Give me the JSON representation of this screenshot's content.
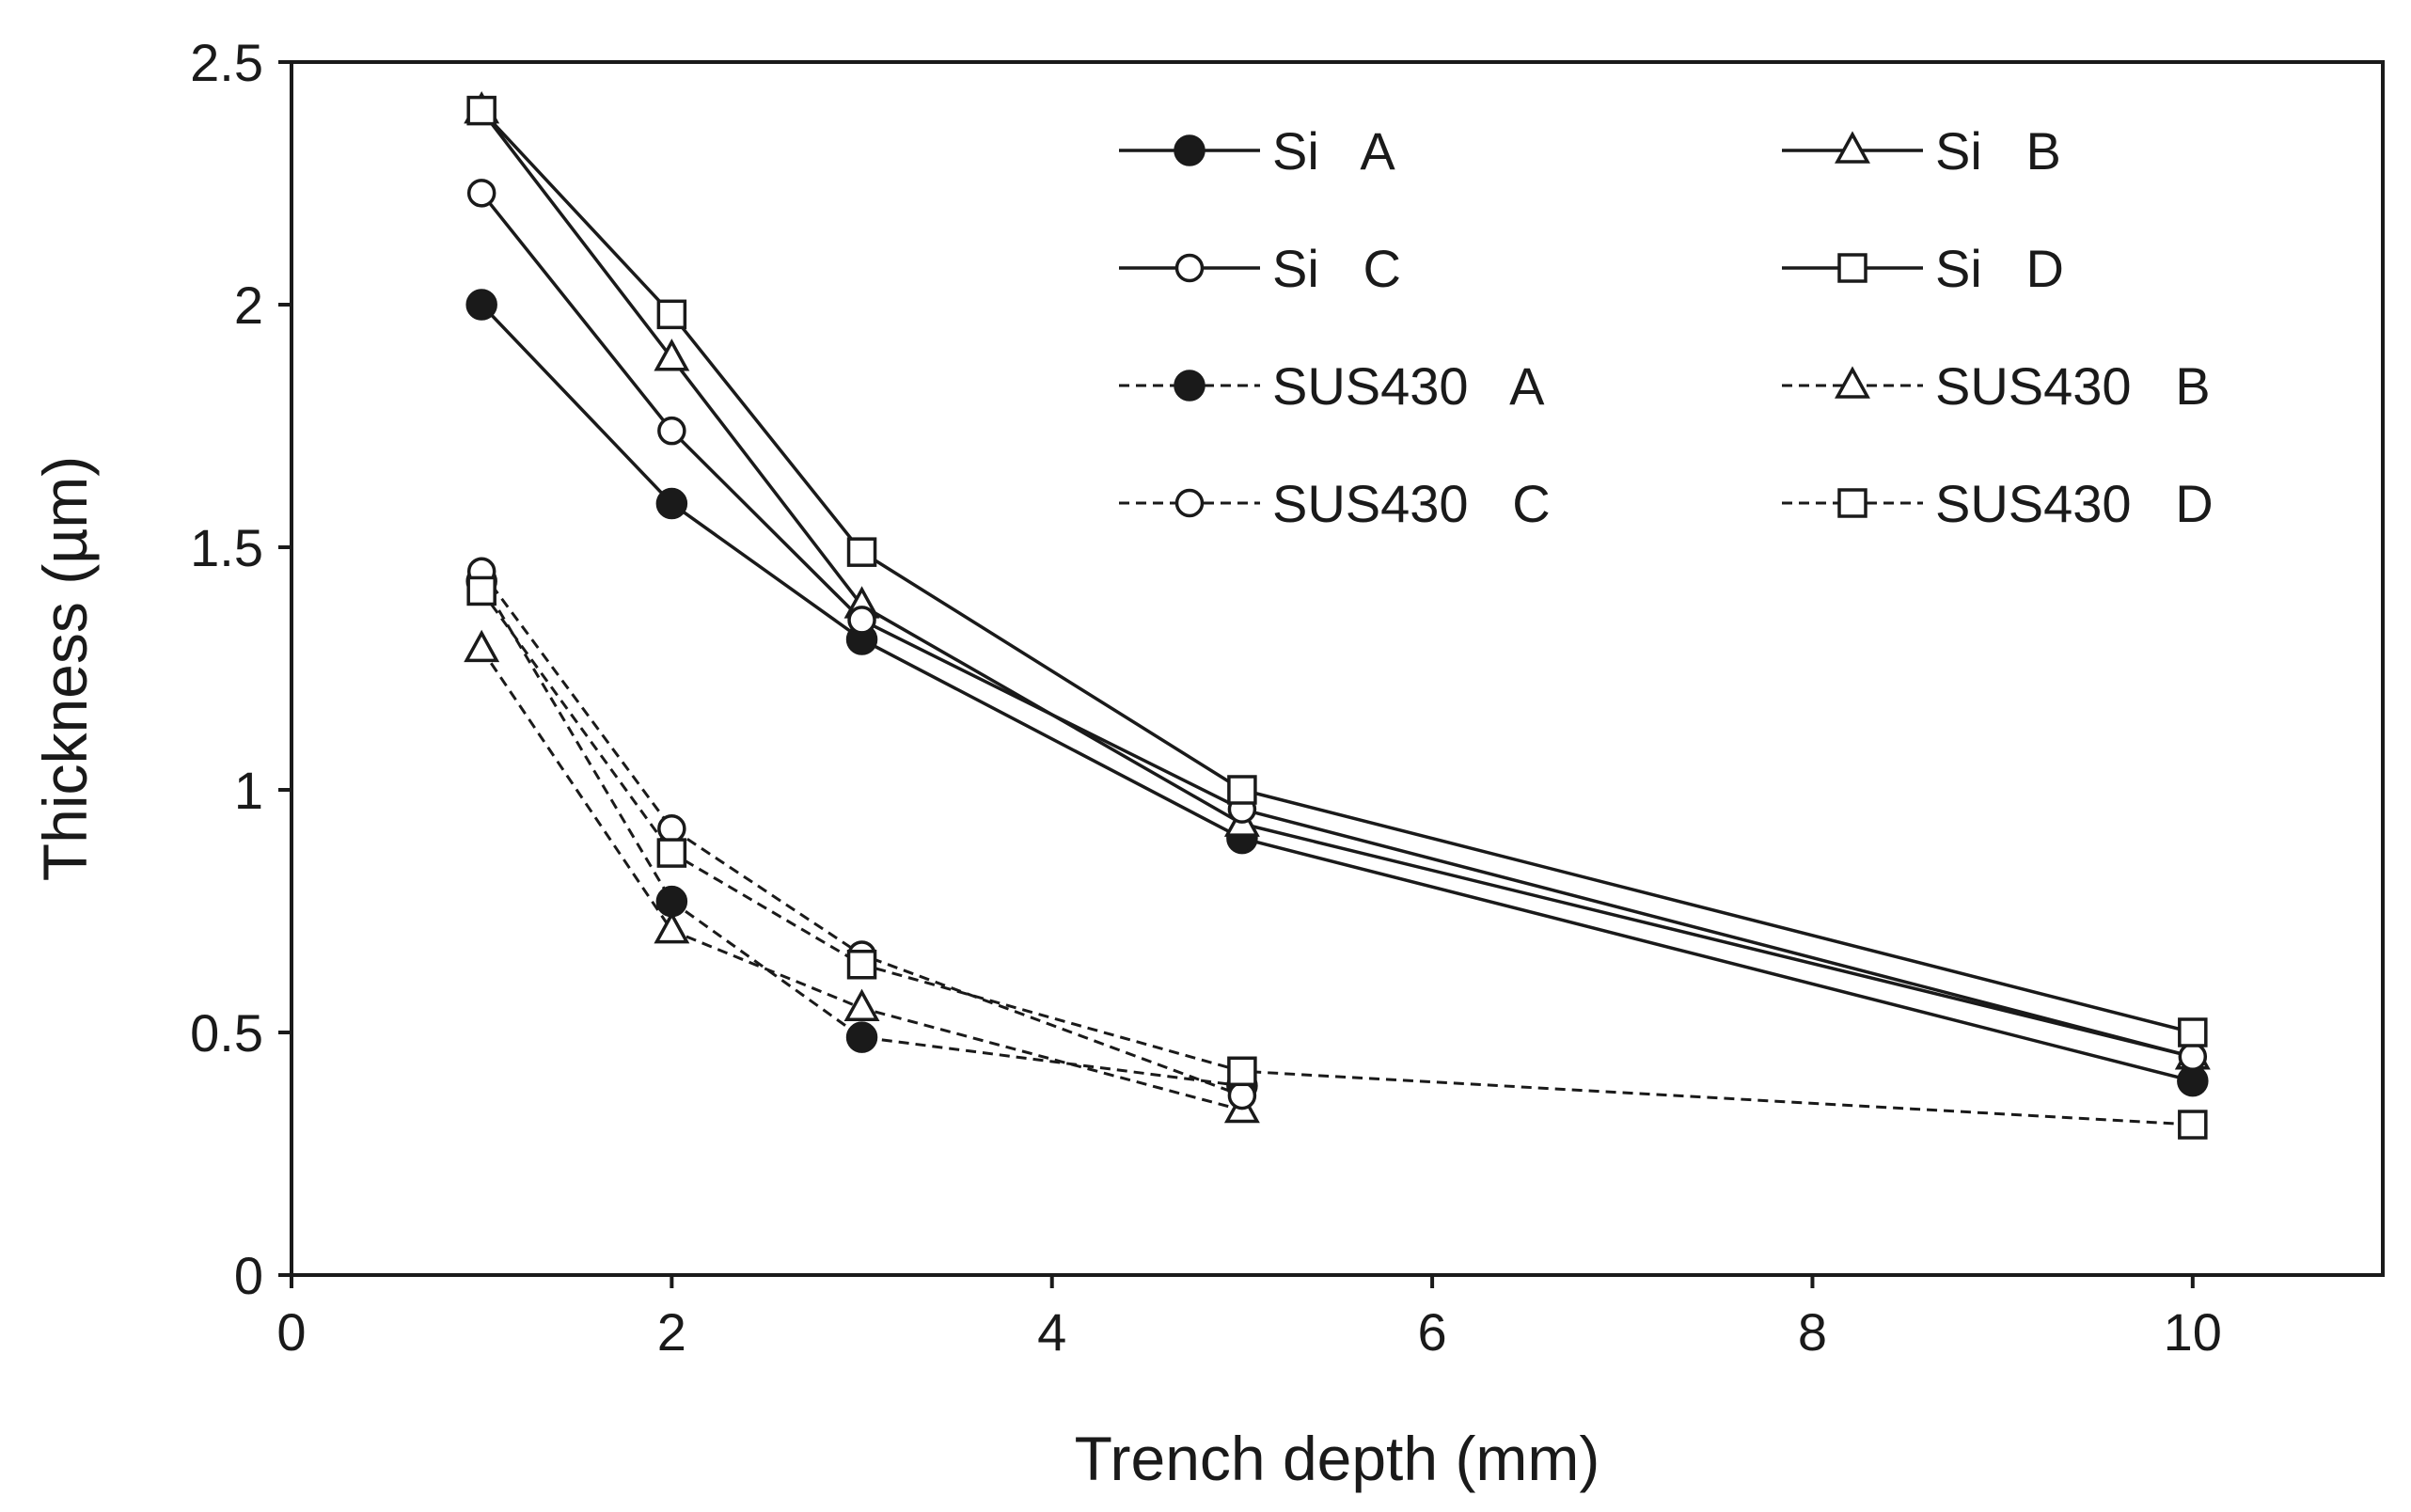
{
  "chart_data": {
    "type": "line",
    "title": "",
    "xlabel": "Trench depth (mm)",
    "ylabel": "Thickness (µm)",
    "xlim": [
      0,
      11
    ],
    "ylim": [
      0,
      2.5
    ],
    "xticks": [
      0,
      2,
      4,
      6,
      8,
      10
    ],
    "yticks": [
      0,
      0.5,
      1,
      1.5,
      2,
      2.5
    ],
    "xtick_labels": [
      "0",
      "2",
      "4",
      "6",
      "8",
      "10"
    ],
    "ytick_labels": [
      "0",
      "0.5",
      "1",
      "1.5",
      "2",
      "2.5"
    ],
    "grid": false,
    "legend_position": "top-right",
    "series": [
      {
        "name": "Si   A",
        "marker": "circle-filled",
        "line": "solid",
        "x": [
          1,
          2,
          3,
          5,
          10
        ],
        "y": [
          2.0,
          1.59,
          1.31,
          0.9,
          0.4
        ]
      },
      {
        "name": "Si   B",
        "marker": "triangle-open",
        "line": "solid",
        "x": [
          1,
          2,
          3,
          5,
          10
        ],
        "y": [
          2.4,
          1.89,
          1.38,
          0.93,
          0.45
        ]
      },
      {
        "name": "Si   C",
        "marker": "circle-open",
        "line": "solid",
        "x": [
          1,
          2,
          3,
          5,
          10
        ],
        "y": [
          2.23,
          1.74,
          1.35,
          0.96,
          0.45
        ]
      },
      {
        "name": "Si   D",
        "marker": "square-open",
        "line": "solid",
        "x": [
          1,
          2,
          3,
          5,
          10
        ],
        "y": [
          2.4,
          1.98,
          1.49,
          1.0,
          0.5
        ]
      },
      {
        "name": "SUS430   A",
        "marker": "circle-filled",
        "line": "dashed",
        "x": [
          1,
          2,
          3,
          5
        ],
        "y": [
          1.43,
          0.77,
          0.49,
          0.39
        ]
      },
      {
        "name": "SUS430   B",
        "marker": "triangle-open",
        "line": "dashed",
        "x": [
          1,
          2,
          3,
          5
        ],
        "y": [
          1.29,
          0.71,
          0.55,
          0.34
        ]
      },
      {
        "name": "SUS430   C",
        "marker": "circle-open",
        "line": "dashed",
        "x": [
          1,
          2,
          3,
          5
        ],
        "y": [
          1.45,
          0.92,
          0.66,
          0.37
        ]
      },
      {
        "name": "SUS430   D",
        "marker": "square-open",
        "line": "dashed",
        "x": [
          1,
          2,
          3,
          5,
          10
        ],
        "y": [
          1.41,
          0.87,
          0.64,
          0.42,
          0.31
        ]
      }
    ]
  }
}
